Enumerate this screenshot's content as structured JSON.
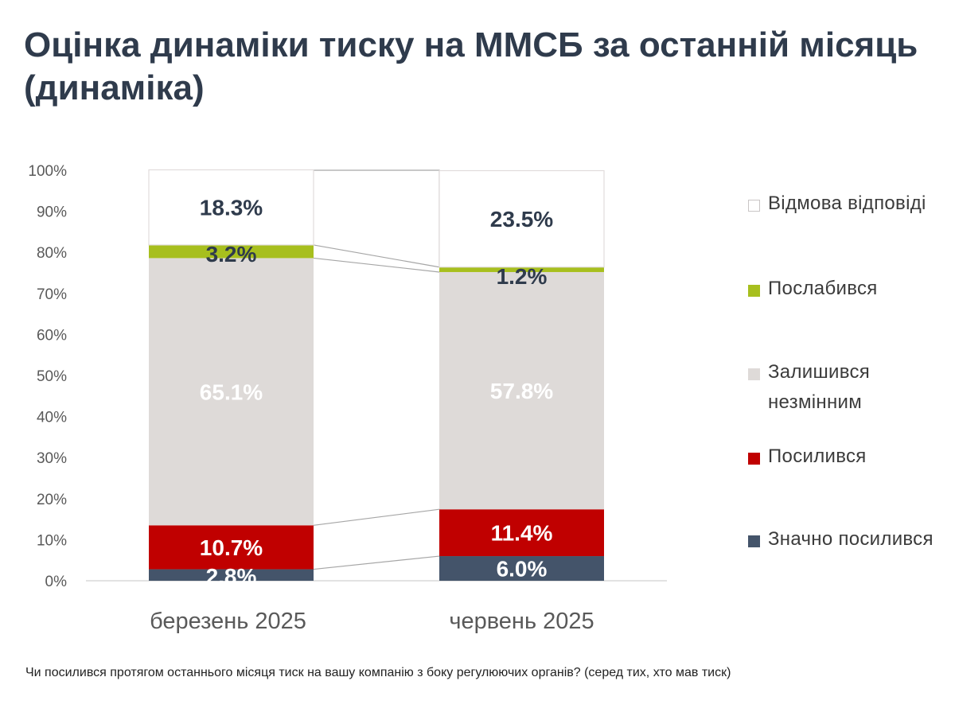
{
  "title": "Оцінка динаміки тиску на ММСБ за останній місяць (динаміка)",
  "footnote": "Чи посилився протягом останнього місяця тиск на вашу компанію з боку регулюючих органів? (серед тих, хто мав тиск)",
  "legend": [
    {
      "label": "Відмова відповіді",
      "color": "#ffffff"
    },
    {
      "label": "Послабився",
      "color": "#a7bf1e"
    },
    {
      "label": "Залишився незмінним",
      "color": "#dedad8"
    },
    {
      "label": "Посилився",
      "color": "#c00000"
    },
    {
      "label": "Значно посилився",
      "color": "#44546a"
    }
  ],
  "chart_data": {
    "type": "bar",
    "stacked": true,
    "percent_axis": true,
    "categories": [
      "березень 2025",
      "червень 2025"
    ],
    "series": [
      {
        "name": "Значно посилився",
        "color": "#44546a",
        "values": [
          2.8,
          6.0
        ],
        "labels": [
          "2.8%",
          "6.0%"
        ],
        "label_color": "#ffffff"
      },
      {
        "name": "Посилився",
        "color": "#c00000",
        "values": [
          10.7,
          11.4
        ],
        "labels": [
          "10.7%",
          "11.4%"
        ],
        "label_color": "#ffffff"
      },
      {
        "name": "Залишився незмінним",
        "color": "#dedad8",
        "values": [
          65.1,
          57.8
        ],
        "labels": [
          "65.1%",
          "57.8%"
        ],
        "label_color": "#ffffff"
      },
      {
        "name": "Послабився",
        "color": "#a7bf1e",
        "values": [
          3.2,
          1.2
        ],
        "labels": [
          "3.2%",
          "1.2%"
        ],
        "label_color": "#2f3b4c"
      },
      {
        "name": "Відмова відповіді",
        "color": "#ffffff",
        "values": [
          18.3,
          23.5
        ],
        "labels": [
          "18.3%",
          "23.5%"
        ],
        "label_color": "#2f3b4c"
      }
    ],
    "yticks": [
      "0%",
      "10%",
      "20%",
      "30%",
      "40%",
      "50%",
      "60%",
      "70%",
      "80%",
      "90%",
      "100%"
    ],
    "ylim": [
      0,
      100
    ],
    "legend_position": "right",
    "grid": false
  }
}
